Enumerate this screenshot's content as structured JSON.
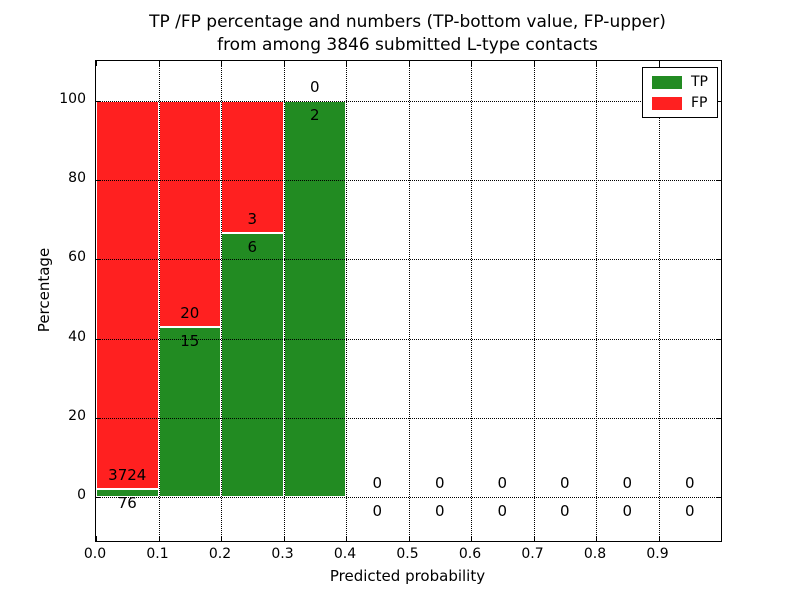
{
  "chart_data": {
    "type": "bar",
    "stacked_percentage": true,
    "title_line1": "TP /FP percentage and numbers (TP-bottom value, FP-upper)",
    "title_line2": "from among 3846 submitted L-type contacts",
    "xlabel": "Predicted probability",
    "ylabel": "Percentage",
    "xlim": [
      0.0,
      1.0
    ],
    "ylim": [
      -11,
      110
    ],
    "xtick_labels": [
      "0.0",
      "0.1",
      "0.2",
      "0.3",
      "0.4",
      "0.5",
      "0.6",
      "0.7",
      "0.8",
      "0.9"
    ],
    "yticks": [
      0,
      20,
      40,
      60,
      80,
      100
    ],
    "grid_style": "dotted",
    "bin_width": 0.1,
    "categories": [
      "0.0-0.1",
      "0.1-0.2",
      "0.2-0.3",
      "0.3-0.4",
      "0.4-0.5",
      "0.5-0.6",
      "0.6-0.7",
      "0.7-0.8",
      "0.8-0.9",
      "0.9-1.0"
    ],
    "series": [
      {
        "name": "TP",
        "color": "#228B22",
        "counts": [
          76,
          15,
          6,
          2,
          0,
          0,
          0,
          0,
          0,
          0
        ]
      },
      {
        "name": "FP",
        "color": "#FF2020",
        "counts": [
          3724,
          20,
          3,
          0,
          0,
          0,
          0,
          0,
          0,
          0
        ]
      }
    ],
    "tp_percent": [
      2.0,
      42.86,
      66.67,
      100.0,
      0,
      0,
      0,
      0,
      0,
      0
    ],
    "total_contacts": 3846,
    "legend": {
      "position": "upper right",
      "items": [
        {
          "label": "TP",
          "color": "#228B22"
        },
        {
          "label": "FP",
          "color": "#FF2020"
        }
      ]
    }
  }
}
